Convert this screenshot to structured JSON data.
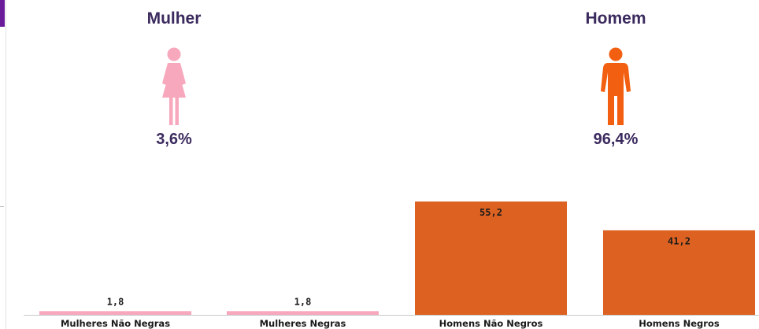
{
  "gender_summary": {
    "female": {
      "title": "Mulher",
      "percent": "3,6%",
      "icon": "female-person-icon",
      "color": "#f7a8bd"
    },
    "male": {
      "title": "Homem",
      "percent": "96,4%",
      "icon": "male-person-icon",
      "color": "#f25f10"
    }
  },
  "colors": {
    "female_bar": "#f7a8bd",
    "male_bar": "#dd6222",
    "text": "#3b2a5e",
    "accent": "#6a1b9a"
  },
  "chart_data": {
    "type": "bar",
    "categories": [
      "Mulheres Não Negras",
      "Mulheres Negras",
      "Homens Não Negros",
      "Homens Negros"
    ],
    "values": [
      1.8,
      1.8,
      55.2,
      41.2
    ],
    "value_labels": [
      "1,8",
      "1,8",
      "55,2",
      "41,2"
    ],
    "bar_colors": [
      "#f7a8bd",
      "#f7a8bd",
      "#dd6222",
      "#dd6222"
    ],
    "title": "",
    "xlabel": "",
    "ylabel": "",
    "ylim": [
      0,
      60
    ],
    "grid": false,
    "legend": "none"
  }
}
